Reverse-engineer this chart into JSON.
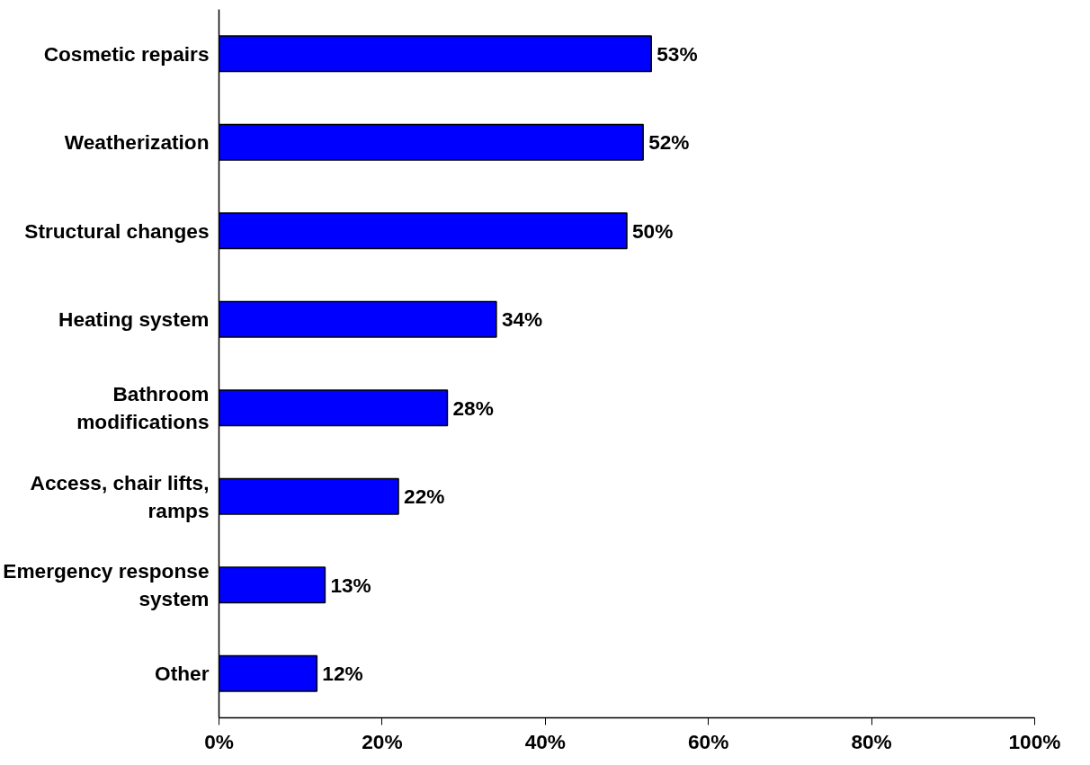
{
  "chart_data": {
    "type": "bar",
    "orientation": "horizontal",
    "categories": [
      "Cosmetic repairs",
      "Weatherization",
      "Structural changes",
      "Heating system",
      "Bathroom modifications",
      "Access, chair lifts, ramps",
      "Emergency response system",
      "Other"
    ],
    "values": [
      53,
      52,
      50,
      34,
      28,
      22,
      13,
      12
    ],
    "value_labels": [
      "53%",
      "52%",
      "50%",
      "34%",
      "28%",
      "22%",
      "13%",
      "12%"
    ],
    "color": "#0000ff",
    "xlim": [
      0,
      100
    ],
    "xticks": [
      {
        "value": 0,
        "label": "0%"
      },
      {
        "value": 20,
        "label": "20%"
      },
      {
        "value": 40,
        "label": "40%"
      },
      {
        "value": 60,
        "label": "60%"
      },
      {
        "value": 80,
        "label": "80%"
      },
      {
        "value": 100,
        "label": "100%"
      }
    ],
    "grid": false
  }
}
